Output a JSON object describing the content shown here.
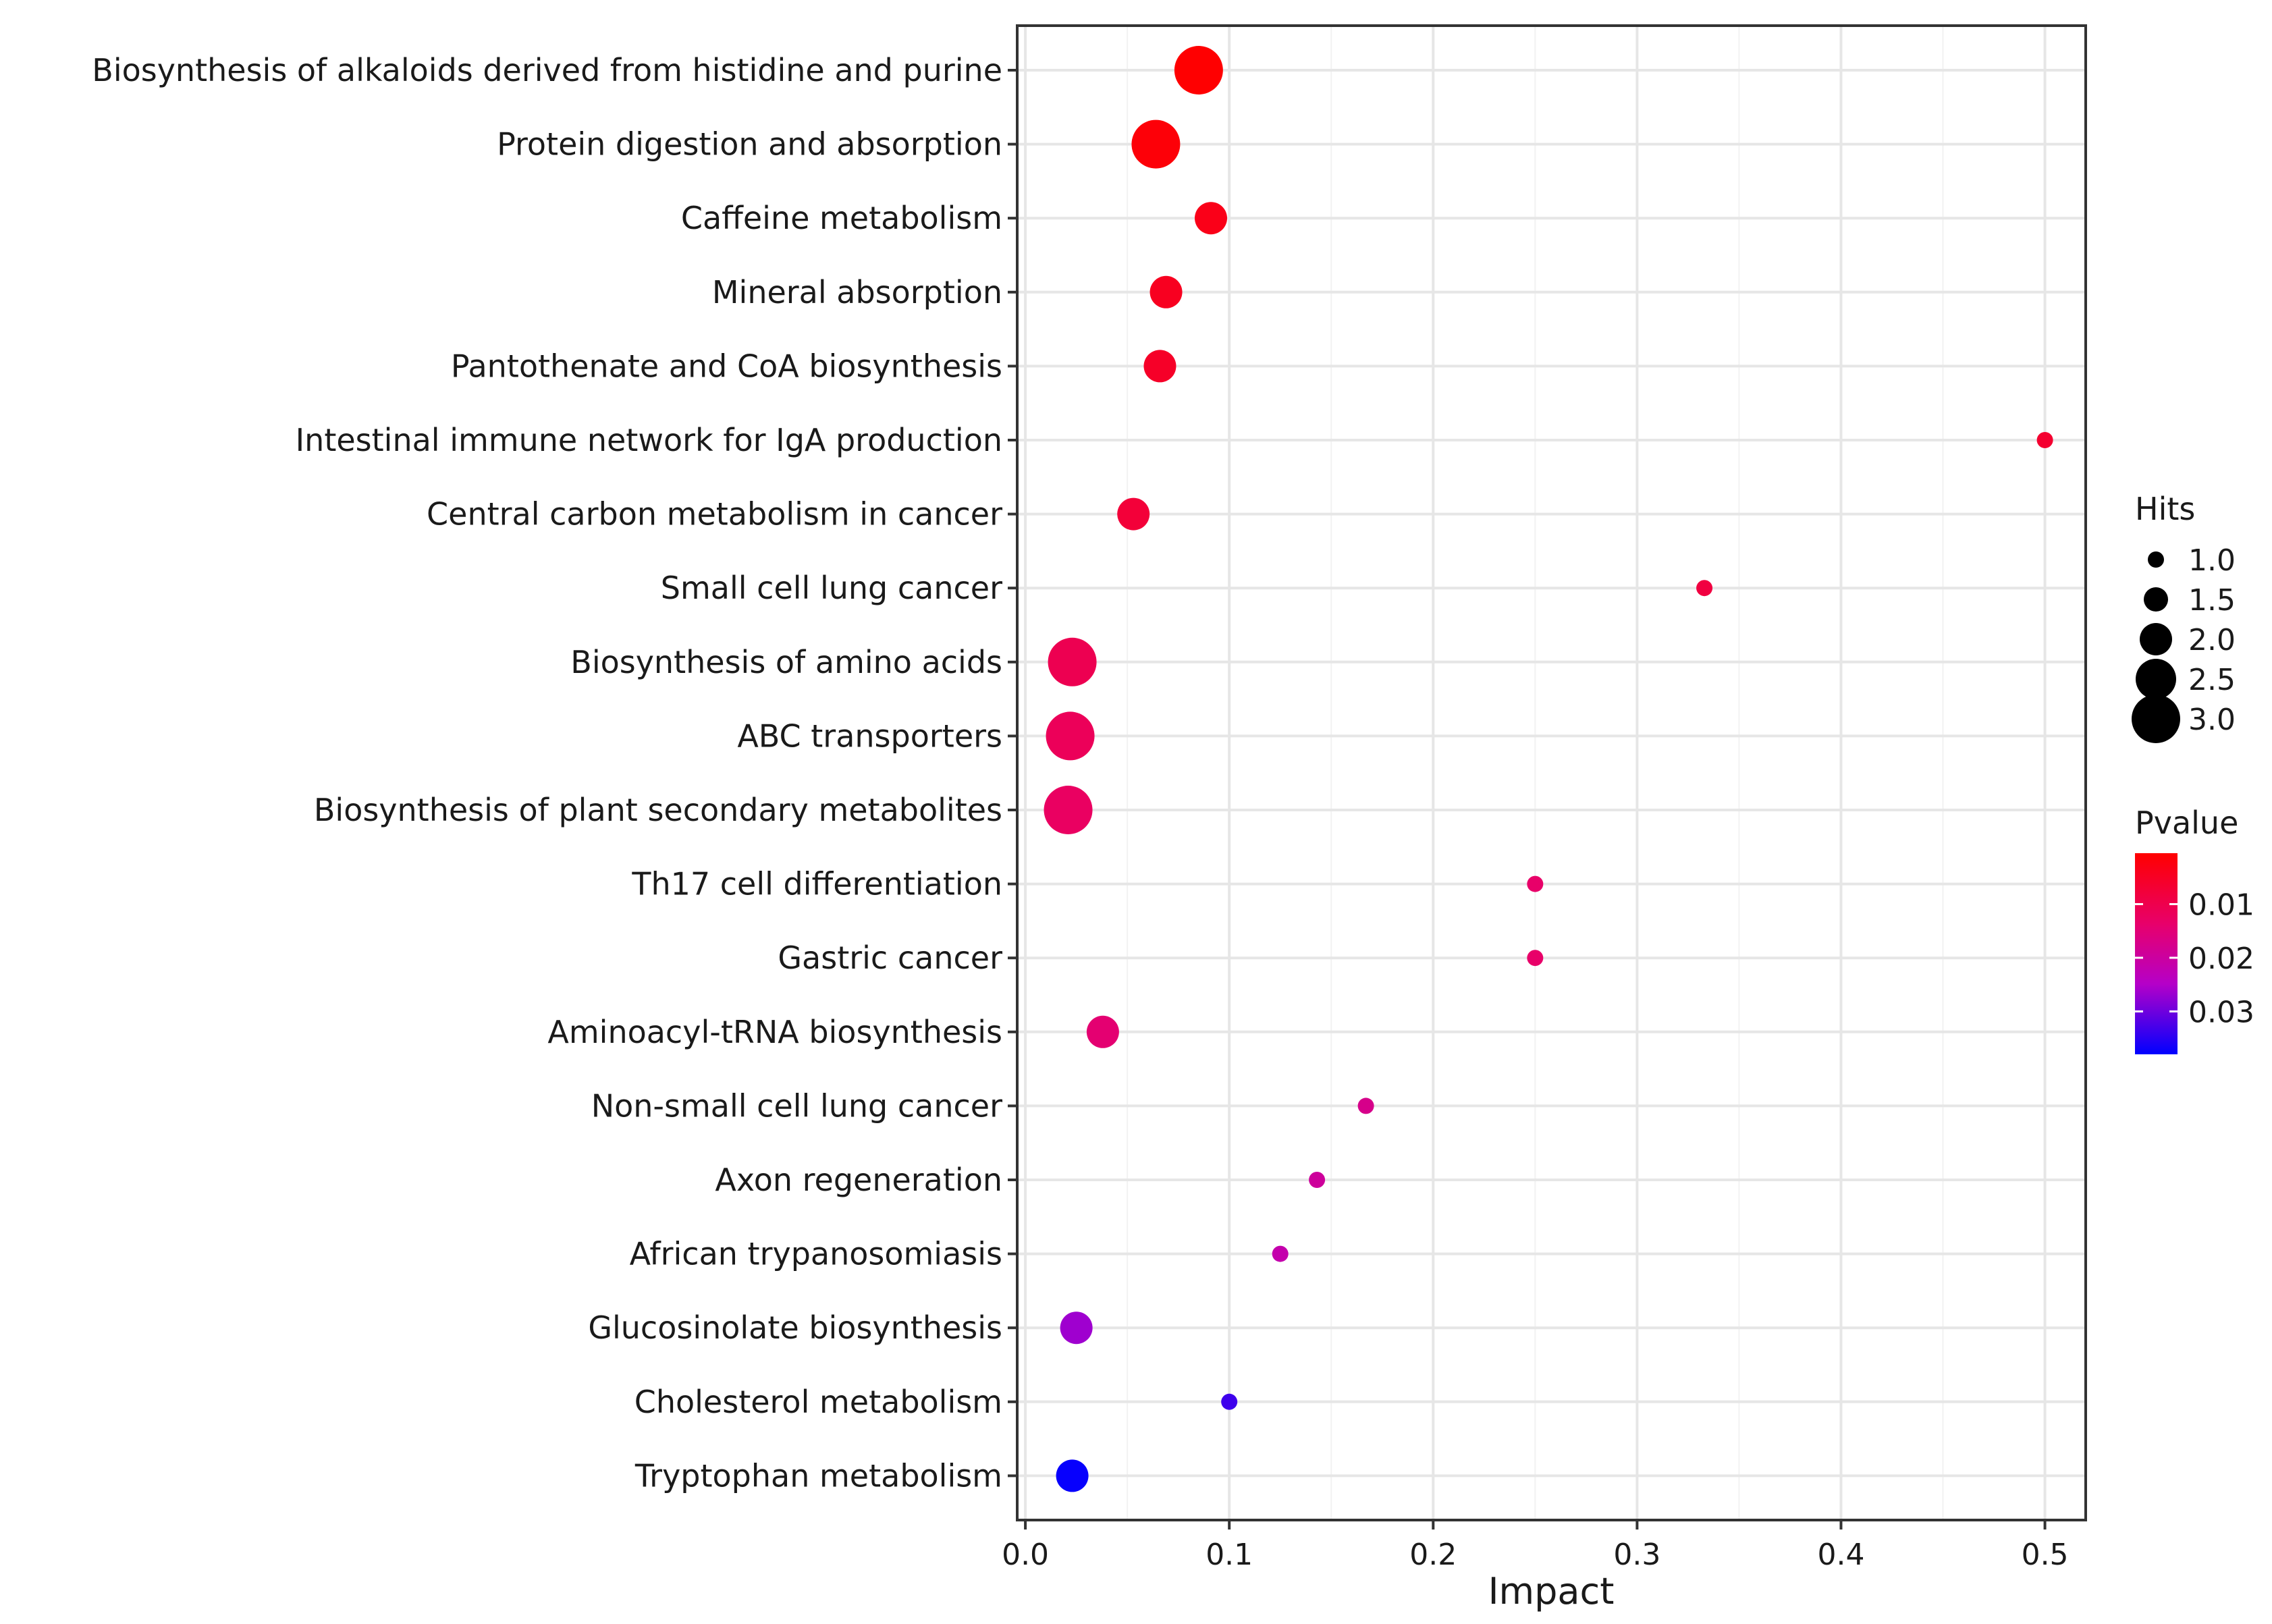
{
  "chart_data": {
    "type": "scatter",
    "xlabel": "Impact",
    "ylabel": "",
    "xlim": [
      -0.004,
      0.52
    ],
    "x_ticks": [
      {
        "value": 0.0,
        "label": "0.0"
      },
      {
        "value": 0.1,
        "label": "0.1"
      },
      {
        "value": 0.2,
        "label": "0.2"
      },
      {
        "value": 0.3,
        "label": "0.3"
      },
      {
        "value": 0.4,
        "label": "0.4"
      },
      {
        "value": 0.5,
        "label": "0.5"
      }
    ],
    "grid": true,
    "size_legend": {
      "title": "Hits",
      "entries": [
        {
          "value": 1.0,
          "label": "1.0"
        },
        {
          "value": 1.5,
          "label": "1.5"
        },
        {
          "value": 2.0,
          "label": "2.0"
        },
        {
          "value": 2.5,
          "label": "2.5"
        },
        {
          "value": 3.0,
          "label": "3.0"
        }
      ]
    },
    "color_legend": {
      "title": "Pvalue",
      "range": [
        0.0005,
        0.038
      ],
      "low_color": "#ff0000",
      "high_color": "#0000ff",
      "ticks": [
        {
          "value": 0.01,
          "label": "0.01"
        },
        {
          "value": 0.02,
          "label": "0.02"
        },
        {
          "value": 0.03,
          "label": "0.03"
        }
      ]
    },
    "points": [
      {
        "pathway": "Biosynthesis of alkaloids derived from histidine and purine",
        "impact": 0.085,
        "hits": 3,
        "pvalue": 0.0006
      },
      {
        "pathway": "Protein digestion and absorption",
        "impact": 0.064,
        "hits": 3,
        "pvalue": 0.0015
      },
      {
        "pathway": "Caffeine metabolism",
        "impact": 0.091,
        "hits": 2,
        "pvalue": 0.0035
      },
      {
        "pathway": "Mineral absorption",
        "impact": 0.069,
        "hits": 2,
        "pvalue": 0.0045
      },
      {
        "pathway": "Pantothenate and CoA biosynthesis",
        "impact": 0.066,
        "hits": 2,
        "pvalue": 0.0055
      },
      {
        "pathway": "Intestinal immune network for IgA production",
        "impact": 0.5,
        "hits": 1,
        "pvalue": 0.0065
      },
      {
        "pathway": "Central carbon metabolism in cancer",
        "impact": 0.053,
        "hits": 2,
        "pvalue": 0.0075
      },
      {
        "pathway": "Small cell lung cancer",
        "impact": 0.333,
        "hits": 1,
        "pvalue": 0.0085
      },
      {
        "pathway": "Biosynthesis of amino acids",
        "impact": 0.023,
        "hits": 3,
        "pvalue": 0.0105
      },
      {
        "pathway": "ABC transporters",
        "impact": 0.022,
        "hits": 3,
        "pvalue": 0.0115
      },
      {
        "pathway": "Biosynthesis of plant secondary metabolites",
        "impact": 0.021,
        "hits": 3,
        "pvalue": 0.0125
      },
      {
        "pathway": "Th17 cell differentiation",
        "impact": 0.25,
        "hits": 1,
        "pvalue": 0.0135
      },
      {
        "pathway": "Gastric cancer",
        "impact": 0.25,
        "hits": 1,
        "pvalue": 0.0135
      },
      {
        "pathway": "Aminoacyl-tRNA biosynthesis",
        "impact": 0.038,
        "hits": 2,
        "pvalue": 0.0145
      },
      {
        "pathway": "Non-small cell lung cancer",
        "impact": 0.167,
        "hits": 1,
        "pvalue": 0.0175
      },
      {
        "pathway": "Axon regeneration",
        "impact": 0.143,
        "hits": 1,
        "pvalue": 0.0195
      },
      {
        "pathway": "African trypanosomiasis",
        "impact": 0.125,
        "hits": 1,
        "pvalue": 0.0215
      },
      {
        "pathway": "Glucosinolate biosynthesis",
        "impact": 0.025,
        "hits": 2,
        "pvalue": 0.0265
      },
      {
        "pathway": "Cholesterol metabolism",
        "impact": 0.1,
        "hits": 1,
        "pvalue": 0.0335
      },
      {
        "pathway": "Tryptophan metabolism",
        "impact": 0.023,
        "hits": 2,
        "pvalue": 0.0375
      }
    ]
  }
}
